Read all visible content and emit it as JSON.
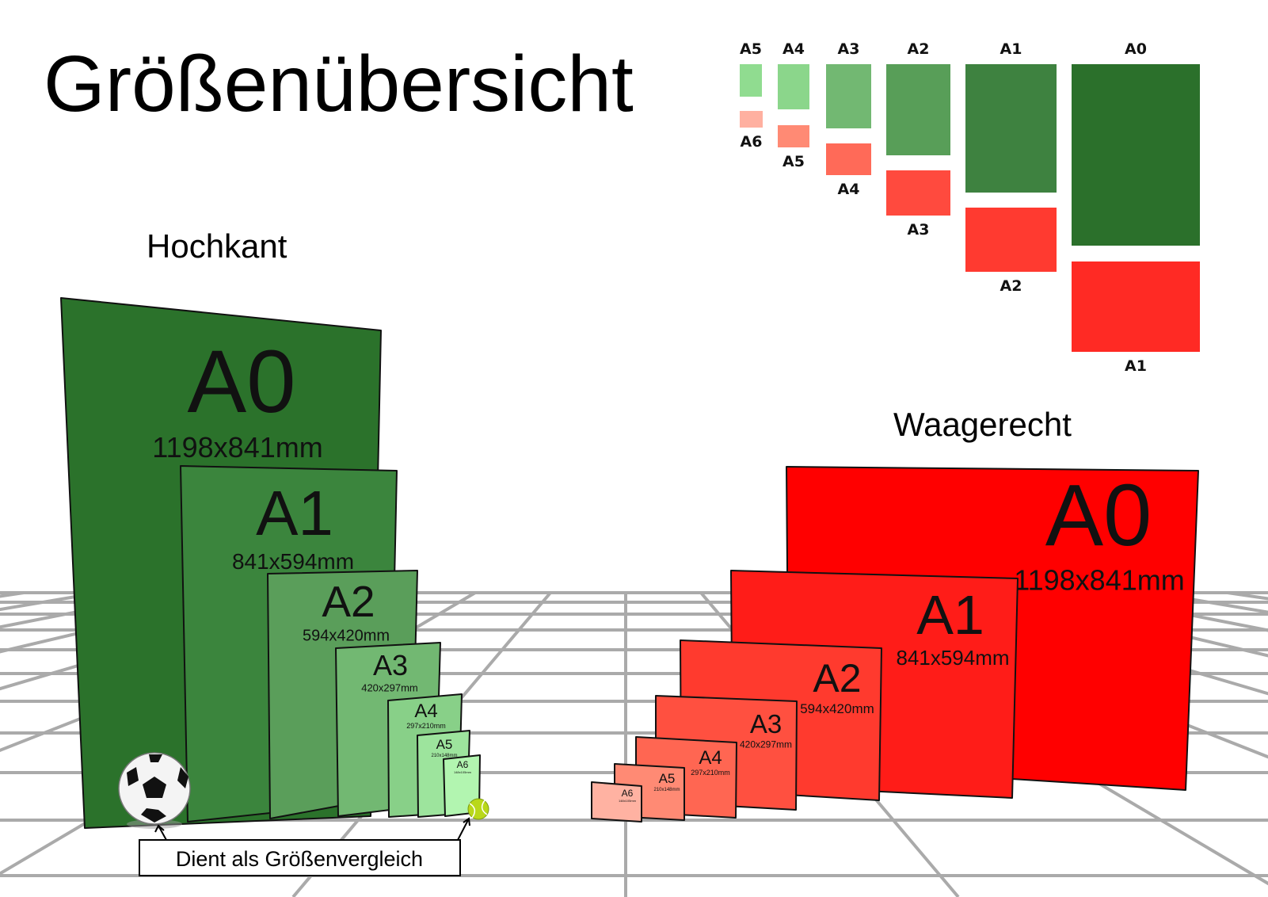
{
  "title": "Größenübersicht",
  "portrait_heading": "Hochkant",
  "landscape_heading": "Waagerecht",
  "caption": "Dient als Größenvergleich",
  "comparison_objects": [
    "soccer-ball",
    "tennis-ball"
  ],
  "portrait_panels": [
    {
      "name": "A0",
      "dims": "1198x841mm",
      "color": "#2b722b"
    },
    {
      "name": "A1",
      "dims": "841x594mm",
      "color": "#3b853d"
    },
    {
      "name": "A2",
      "dims": "594x420mm",
      "color": "#5a9e5a"
    },
    {
      "name": "A3",
      "dims": "420x297mm",
      "color": "#72b872"
    },
    {
      "name": "A4",
      "dims": "297x210mm",
      "color": "#88d088"
    },
    {
      "name": "A5",
      "dims": "210x148mm",
      "color": "#9de49d"
    },
    {
      "name": "A6",
      "dims": "148x105mm",
      "color": "#b2f5b0"
    }
  ],
  "landscape_panels": [
    {
      "name": "A0",
      "dims": "1198x841mm",
      "color": "#ff0000"
    },
    {
      "name": "A1",
      "dims": "841x594mm",
      "color": "#ff1c18"
    },
    {
      "name": "A2",
      "dims": "594x420mm",
      "color": "#ff3a2e"
    },
    {
      "name": "A3",
      "dims": "420x297mm",
      "color": "#ff5040"
    },
    {
      "name": "A4",
      "dims": "297x210mm",
      "color": "#ff6652"
    },
    {
      "name": "A5",
      "dims": "210x148mm",
      "color": "#ff8a74"
    },
    {
      "name": "A6",
      "dims": "148x105mm",
      "color": "#ffb2a2"
    }
  ],
  "overview": {
    "portrait": [
      {
        "label": "A5",
        "color": "#90dc90"
      },
      {
        "label": "A4",
        "color": "#8bd68b"
      },
      {
        "label": "A3",
        "color": "#72b872"
      },
      {
        "label": "A2",
        "color": "#589e58"
      },
      {
        "label": "A1",
        "color": "#3e8240"
      },
      {
        "label": "A0",
        "color": "#2b702b"
      }
    ],
    "landscape": [
      {
        "label": "A6",
        "color": "#ffb0a0"
      },
      {
        "label": "A5",
        "color": "#ff8a74"
      },
      {
        "label": "A4",
        "color": "#ff6a58"
      },
      {
        "label": "A3",
        "color": "#ff4a3e"
      },
      {
        "label": "A2",
        "color": "#ff3a30"
      },
      {
        "label": "A1",
        "color": "#ff2a24"
      }
    ]
  }
}
